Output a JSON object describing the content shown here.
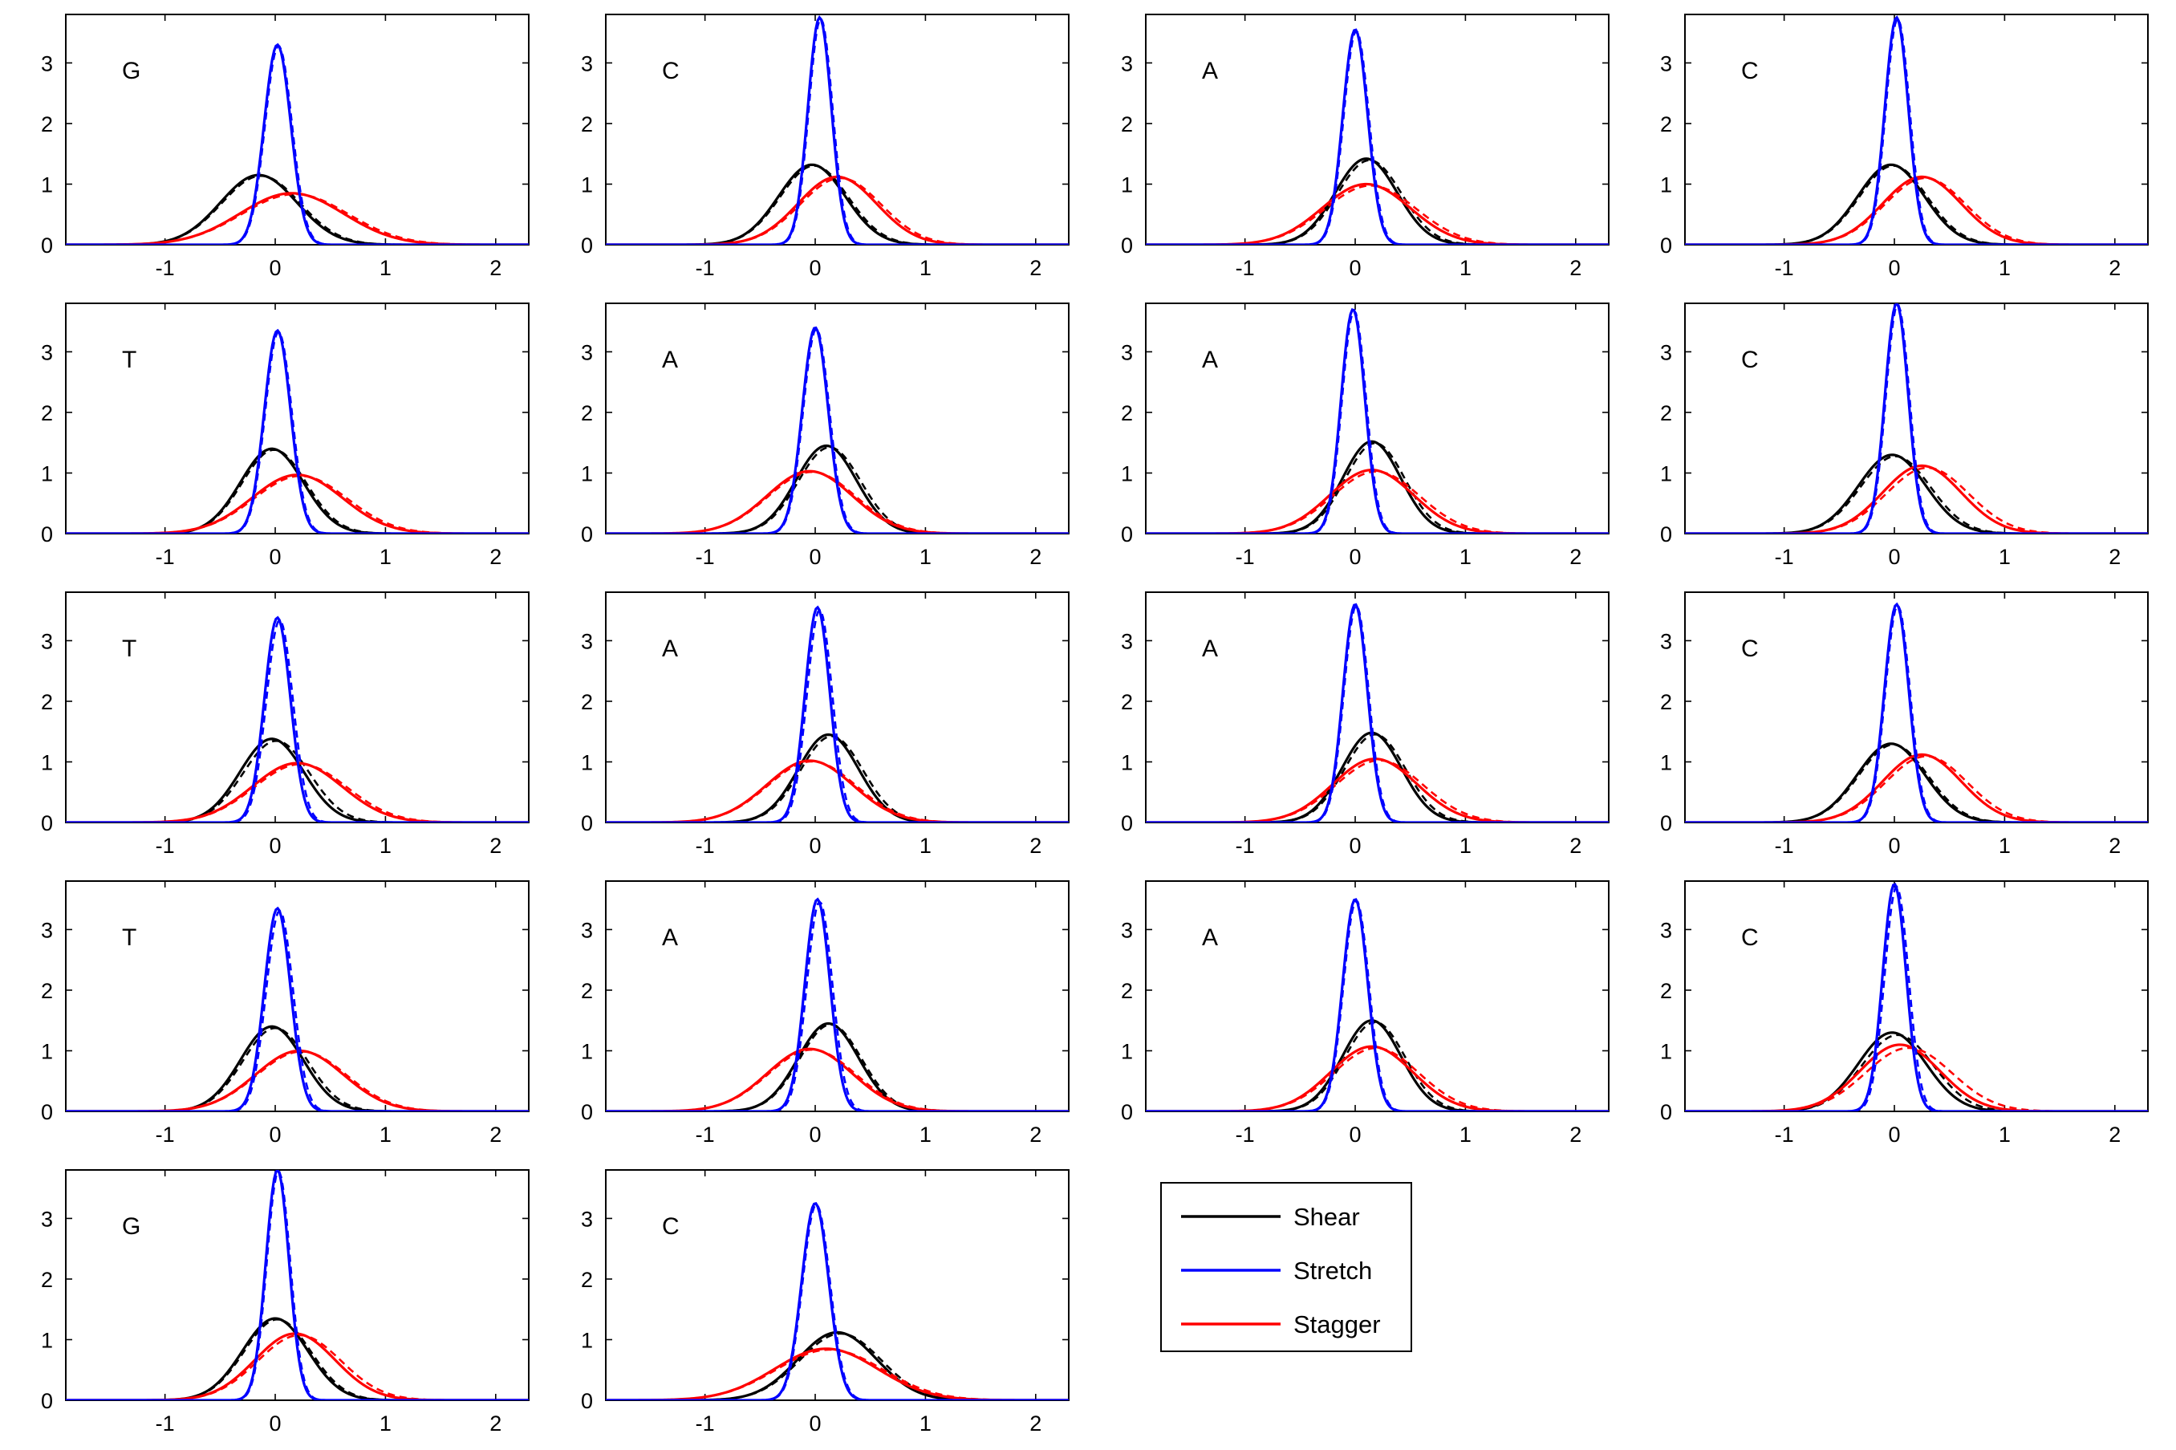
{
  "colors": {
    "Shear": "#000000",
    "Stretch": "#0000ff",
    "Stagger": "#ff0000"
  },
  "legend": {
    "position": "below-right of the last row",
    "entries": [
      "Shear",
      "Stretch",
      "Stagger"
    ]
  },
  "chart_data": [
    {
      "type": "line",
      "label": "G",
      "xlim": [
        -1.9,
        2.3
      ],
      "ylim": [
        0,
        3.8
      ],
      "xticks": [
        -1,
        0,
        1,
        2
      ],
      "yticks": [
        0,
        1,
        2,
        3
      ],
      "series": [
        {
          "name": "Shear",
          "mu": -0.15,
          "peak": 1.15,
          "dashed_offset": 0.02
        },
        {
          "name": "Stretch",
          "mu": 0.02,
          "peak": 3.3,
          "dashed_offset": 0.01
        },
        {
          "name": "Stagger",
          "mu": 0.15,
          "peak": 0.85,
          "dashed_offset": 0.03
        }
      ]
    },
    {
      "type": "line",
      "label": "C",
      "xlim": [
        -1.9,
        2.3
      ],
      "ylim": [
        0,
        3.8
      ],
      "xticks": [
        -1,
        0,
        1,
        2
      ],
      "yticks": [
        0,
        1,
        2,
        3
      ],
      "series": [
        {
          "name": "Shear",
          "mu": -0.03,
          "peak": 1.32,
          "dashed_offset": 0.02
        },
        {
          "name": "Stretch",
          "mu": 0.04,
          "peak": 3.75,
          "dashed_offset": 0.01
        },
        {
          "name": "Stagger",
          "mu": 0.2,
          "peak": 1.12,
          "dashed_offset": 0.03
        }
      ]
    },
    {
      "type": "line",
      "label": "A",
      "xlim": [
        -1.9,
        2.3
      ],
      "ylim": [
        0,
        3.8
      ],
      "xticks": [
        -1,
        0,
        1,
        2
      ],
      "yticks": [
        0,
        1,
        2,
        3
      ],
      "series": [
        {
          "name": "Shear",
          "mu": 0.1,
          "peak": 1.42,
          "dashed_offset": 0.03
        },
        {
          "name": "Stretch",
          "mu": 0.0,
          "peak": 3.55,
          "dashed_offset": 0.01
        },
        {
          "name": "Stagger",
          "mu": 0.1,
          "peak": 1.0,
          "dashed_offset": 0.04
        }
      ]
    },
    {
      "type": "line",
      "label": "C",
      "xlim": [
        -1.9,
        2.3
      ],
      "ylim": [
        0,
        3.8
      ],
      "xticks": [
        -1,
        0,
        1,
        2
      ],
      "yticks": [
        0,
        1,
        2,
        3
      ],
      "series": [
        {
          "name": "Shear",
          "mu": -0.03,
          "peak": 1.32,
          "dashed_offset": 0.02
        },
        {
          "name": "Stretch",
          "mu": 0.02,
          "peak": 3.75,
          "dashed_offset": 0.01
        },
        {
          "name": "Stagger",
          "mu": 0.25,
          "peak": 1.12,
          "dashed_offset": 0.03
        }
      ]
    },
    {
      "type": "line",
      "label": "T",
      "xlim": [
        -1.9,
        2.3
      ],
      "ylim": [
        0,
        3.8
      ],
      "xticks": [
        -1,
        0,
        1,
        2
      ],
      "yticks": [
        0,
        1,
        2,
        3
      ],
      "series": [
        {
          "name": "Shear",
          "mu": -0.03,
          "peak": 1.4,
          "dashed_offset": 0.02
        },
        {
          "name": "Stretch",
          "mu": 0.02,
          "peak": 3.35,
          "dashed_offset": 0.01
        },
        {
          "name": "Stagger",
          "mu": 0.2,
          "peak": 0.97,
          "dashed_offset": 0.03
        }
      ]
    },
    {
      "type": "line",
      "label": "A",
      "xlim": [
        -1.9,
        2.3
      ],
      "ylim": [
        0,
        3.8
      ],
      "xticks": [
        -1,
        0,
        1,
        2
      ],
      "yticks": [
        0,
        1,
        2,
        3
      ],
      "series": [
        {
          "name": "Shear",
          "mu": 0.1,
          "peak": 1.45,
          "dashed_offset": 0.03
        },
        {
          "name": "Stretch",
          "mu": 0.0,
          "peak": 3.4,
          "dashed_offset": 0.01
        },
        {
          "name": "Stagger",
          "mu": -0.05,
          "peak": 1.03,
          "dashed_offset": 0.02
        }
      ]
    },
    {
      "type": "line",
      "label": "A",
      "xlim": [
        -1.9,
        2.3
      ],
      "ylim": [
        0,
        3.8
      ],
      "xticks": [
        -1,
        0,
        1,
        2
      ],
      "yticks": [
        0,
        1,
        2,
        3
      ],
      "series": [
        {
          "name": "Shear",
          "mu": 0.15,
          "peak": 1.52,
          "dashed_offset": 0.03
        },
        {
          "name": "Stretch",
          "mu": -0.02,
          "peak": 3.7,
          "dashed_offset": 0.01
        },
        {
          "name": "Stagger",
          "mu": 0.15,
          "peak": 1.05,
          "dashed_offset": 0.04
        }
      ]
    },
    {
      "type": "line",
      "label": "C",
      "xlim": [
        -1.9,
        2.3
      ],
      "ylim": [
        0,
        3.8
      ],
      "xticks": [
        -1,
        0,
        1,
        2
      ],
      "yticks": [
        0,
        1,
        2,
        3
      ],
      "series": [
        {
          "name": "Shear",
          "mu": -0.02,
          "peak": 1.3,
          "dashed_offset": 0.03
        },
        {
          "name": "Stretch",
          "mu": 0.02,
          "peak": 3.8,
          "dashed_offset": 0.01
        },
        {
          "name": "Stagger",
          "mu": 0.25,
          "peak": 1.12,
          "dashed_offset": 0.05
        }
      ]
    },
    {
      "type": "line",
      "label": "T",
      "xlim": [
        -1.9,
        2.3
      ],
      "ylim": [
        0,
        3.8
      ],
      "xticks": [
        -1,
        0,
        1,
        2
      ],
      "yticks": [
        0,
        1,
        2,
        3
      ],
      "series": [
        {
          "name": "Shear",
          "mu": -0.03,
          "peak": 1.38,
          "dashed_offset": 0.04
        },
        {
          "name": "Stretch",
          "mu": 0.02,
          "peak": 3.38,
          "dashed_offset": 0.02
        },
        {
          "name": "Stagger",
          "mu": 0.2,
          "peak": 0.98,
          "dashed_offset": 0.03
        }
      ]
    },
    {
      "type": "line",
      "label": "A",
      "xlim": [
        -1.9,
        2.3
      ],
      "ylim": [
        0,
        3.8
      ],
      "xticks": [
        -1,
        0,
        1,
        2
      ],
      "yticks": [
        0,
        1,
        2,
        3
      ],
      "series": [
        {
          "name": "Shear",
          "mu": 0.12,
          "peak": 1.45,
          "dashed_offset": 0.03
        },
        {
          "name": "Stretch",
          "mu": 0.02,
          "peak": 3.55,
          "dashed_offset": 0.02
        },
        {
          "name": "Stagger",
          "mu": -0.05,
          "peak": 1.02,
          "dashed_offset": 0.02
        }
      ]
    },
    {
      "type": "line",
      "label": "A",
      "xlim": [
        -1.9,
        2.3
      ],
      "ylim": [
        0,
        3.8
      ],
      "xticks": [
        -1,
        0,
        1,
        2
      ],
      "yticks": [
        0,
        1,
        2,
        3
      ],
      "series": [
        {
          "name": "Shear",
          "mu": 0.15,
          "peak": 1.48,
          "dashed_offset": 0.03
        },
        {
          "name": "Stretch",
          "mu": 0.0,
          "peak": 3.6,
          "dashed_offset": 0.01
        },
        {
          "name": "Stagger",
          "mu": 0.18,
          "peak": 1.05,
          "dashed_offset": 0.04
        }
      ]
    },
    {
      "type": "line",
      "label": "C",
      "xlim": [
        -1.9,
        2.3
      ],
      "ylim": [
        0,
        3.8
      ],
      "xticks": [
        -1,
        0,
        1,
        2
      ],
      "yticks": [
        0,
        1,
        2,
        3
      ],
      "series": [
        {
          "name": "Shear",
          "mu": -0.03,
          "peak": 1.3,
          "dashed_offset": 0.02
        },
        {
          "name": "Stretch",
          "mu": 0.02,
          "peak": 3.6,
          "dashed_offset": 0.01
        },
        {
          "name": "Stagger",
          "mu": 0.25,
          "peak": 1.12,
          "dashed_offset": 0.04
        }
      ]
    },
    {
      "type": "line",
      "label": "T",
      "xlim": [
        -1.9,
        2.3
      ],
      "ylim": [
        0,
        3.8
      ],
      "xticks": [
        -1,
        0,
        1,
        2
      ],
      "yticks": [
        0,
        1,
        2,
        3
      ],
      "series": [
        {
          "name": "Shear",
          "mu": -0.03,
          "peak": 1.4,
          "dashed_offset": 0.03
        },
        {
          "name": "Stretch",
          "mu": 0.02,
          "peak": 3.35,
          "dashed_offset": 0.02
        },
        {
          "name": "Stagger",
          "mu": 0.22,
          "peak": 1.0,
          "dashed_offset": 0.02
        }
      ]
    },
    {
      "type": "line",
      "label": "A",
      "xlim": [
        -1.9,
        2.3
      ],
      "ylim": [
        0,
        3.8
      ],
      "xticks": [
        -1,
        0,
        1,
        2
      ],
      "yticks": [
        0,
        1,
        2,
        3
      ],
      "series": [
        {
          "name": "Shear",
          "mu": 0.12,
          "peak": 1.45,
          "dashed_offset": 0.02
        },
        {
          "name": "Stretch",
          "mu": 0.02,
          "peak": 3.5,
          "dashed_offset": 0.02
        },
        {
          "name": "Stagger",
          "mu": -0.05,
          "peak": 1.03,
          "dashed_offset": 0.02
        }
      ]
    },
    {
      "type": "line",
      "label": "A",
      "xlim": [
        -1.9,
        2.3
      ],
      "ylim": [
        0,
        3.8
      ],
      "xticks": [
        -1,
        0,
        1,
        2
      ],
      "yticks": [
        0,
        1,
        2,
        3
      ],
      "series": [
        {
          "name": "Shear",
          "mu": 0.15,
          "peak": 1.5,
          "dashed_offset": 0.03
        },
        {
          "name": "Stretch",
          "mu": 0.0,
          "peak": 3.5,
          "dashed_offset": 0.01
        },
        {
          "name": "Stagger",
          "mu": 0.15,
          "peak": 1.07,
          "dashed_offset": 0.04
        }
      ]
    },
    {
      "type": "line",
      "label": "C",
      "xlim": [
        -1.9,
        2.3
      ],
      "ylim": [
        0,
        3.8
      ],
      "xticks": [
        -1,
        0,
        1,
        2
      ],
      "yticks": [
        0,
        1,
        2,
        3
      ],
      "series": [
        {
          "name": "Shear",
          "mu": -0.02,
          "peak": 1.3,
          "dashed_offset": 0.05
        },
        {
          "name": "Stretch",
          "mu": 0.0,
          "peak": 3.75,
          "dashed_offset": 0.02
        },
        {
          "name": "Stagger",
          "mu": 0.05,
          "peak": 1.1,
          "dashed_offset": 0.08
        }
      ]
    },
    {
      "type": "line",
      "label": "G",
      "xlim": [
        -1.9,
        2.3
      ],
      "ylim": [
        0,
        3.8
      ],
      "xticks": [
        -1,
        0,
        1,
        2
      ],
      "yticks": [
        0,
        1,
        2,
        3
      ],
      "series": [
        {
          "name": "Shear",
          "mu": 0.0,
          "peak": 1.35,
          "dashed_offset": 0.02
        },
        {
          "name": "Stretch",
          "mu": 0.02,
          "peak": 3.8,
          "dashed_offset": 0.01
        },
        {
          "name": "Stagger",
          "mu": 0.18,
          "peak": 1.1,
          "dashed_offset": 0.04
        }
      ]
    },
    {
      "type": "line",
      "label": "C",
      "xlim": [
        -1.9,
        2.3
      ],
      "ylim": [
        0,
        3.8
      ],
      "xticks": [
        -1,
        0,
        1,
        2
      ],
      "yticks": [
        0,
        1,
        2,
        3
      ],
      "series": [
        {
          "name": "Shear",
          "mu": 0.2,
          "peak": 1.12,
          "dashed_offset": 0.03
        },
        {
          "name": "Stretch",
          "mu": 0.0,
          "peak": 3.25,
          "dashed_offset": 0.01
        },
        {
          "name": "Stagger",
          "mu": 0.1,
          "peak": 0.85,
          "dashed_offset": 0.03
        }
      ]
    }
  ]
}
